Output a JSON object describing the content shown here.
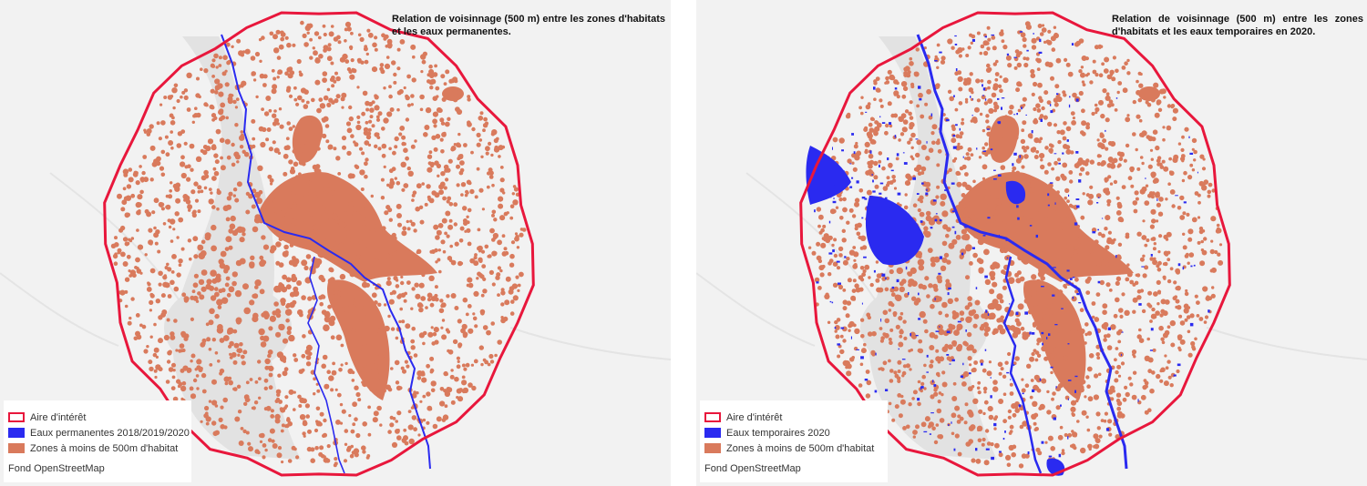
{
  "panels": [
    {
      "id": "permanent",
      "title": "Relation de voisinnage (500 m) entre les zones d'habitats et les eaux permanentes.",
      "legend": {
        "aoi_label": "Aire d'intérêt",
        "water_label": "Eaux permanentes 2018/2019/2020",
        "zone_label": "Zones à moins de 500m d'habitat",
        "credit": "Fond OpenStreetMap"
      }
    },
    {
      "id": "temporary",
      "title": "Relation de voisinnage (500 m) entre les zones d'habitats et les eaux temporaires en 2020.",
      "legend": {
        "aoi_label": "Aire d'intérêt",
        "water_label": "Eaux temporaires 2020",
        "zone_label": "Zones à moins de 500m d'habitat",
        "credit": "Fond OpenStreetMap"
      }
    }
  ],
  "colors": {
    "aoi_outline": "#e8173c",
    "water": "#2a2af0",
    "habitat_zone": "#d97a5c",
    "basemap": "#f2f2f2",
    "basemap_lowland": "#e2e2e2"
  },
  "icons": [
    "aoi-outline-swatch",
    "water-swatch",
    "habitat-zone-swatch"
  ]
}
